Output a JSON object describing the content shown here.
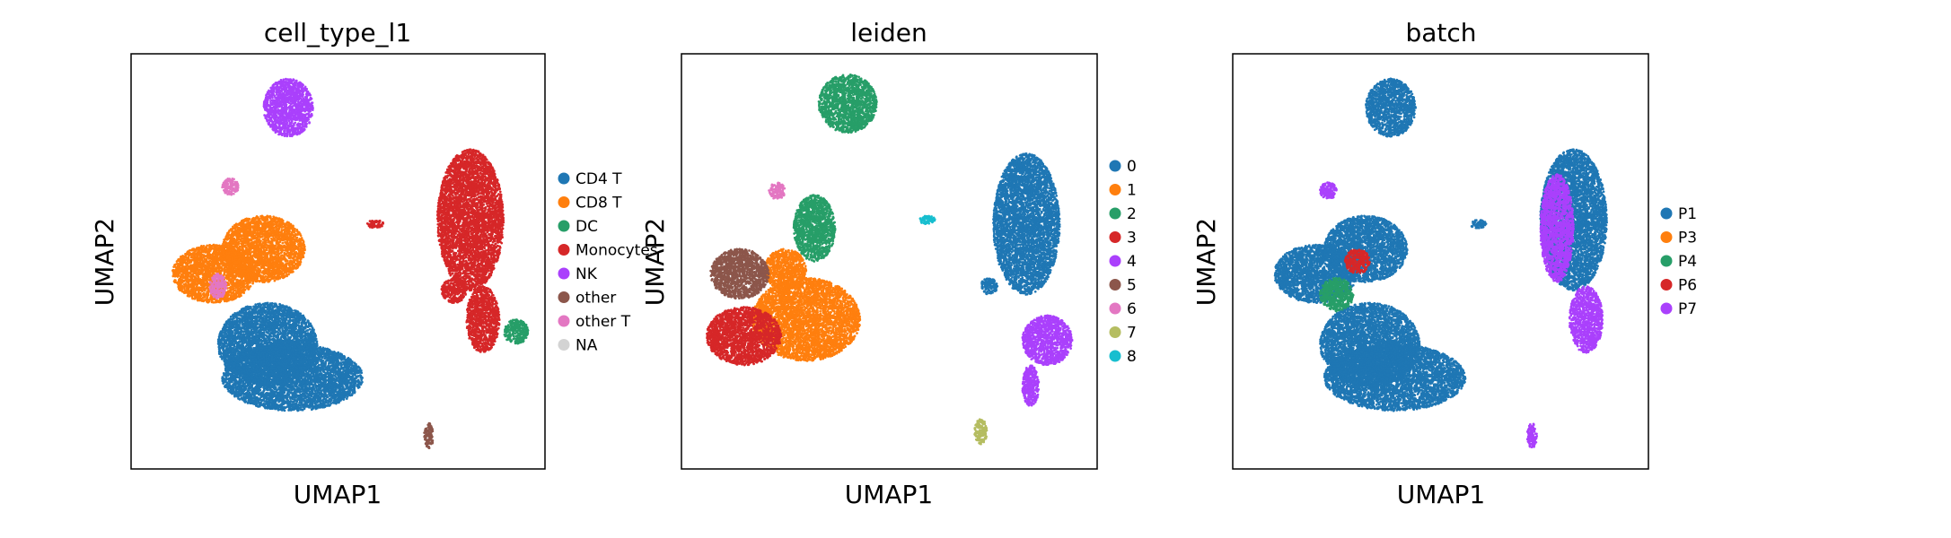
{
  "figure": {
    "background": "#ffffff"
  },
  "chart_data": [
    {
      "type": "scatter",
      "title": "cell_type_l1",
      "xlabel": "UMAP1",
      "ylabel": "UMAP2",
      "show_ylabel": true,
      "ticks": "none",
      "grid": false,
      "legend_position": "right",
      "legend": [
        {
          "name": "CD4 T",
          "color": "#1f77b4"
        },
        {
          "name": "CD8 T",
          "color": "#ff7f0e"
        },
        {
          "name": "DC",
          "color": "#279e68"
        },
        {
          "name": "Monocytes",
          "color": "#d62728"
        },
        {
          "name": "NK",
          "color": "#aa40fc"
        },
        {
          "name": "other",
          "color": "#8c564b"
        },
        {
          "name": "other T",
          "color": "#e377c2"
        },
        {
          "name": "NA",
          "color": "#d3d3d3"
        }
      ],
      "regions": [
        {
          "group": "CD4 T",
          "color": "#1f77b4",
          "cx": 0.39,
          "cy": 0.22,
          "rx": 0.17,
          "ry": 0.08
        },
        {
          "group": "CD4 T",
          "color": "#1f77b4",
          "cx": 0.33,
          "cy": 0.3,
          "rx": 0.12,
          "ry": 0.1
        },
        {
          "group": "CD8 T",
          "color": "#ff7f0e",
          "cx": 0.2,
          "cy": 0.47,
          "rx": 0.1,
          "ry": 0.07
        },
        {
          "group": "CD8 T",
          "color": "#ff7f0e",
          "cx": 0.32,
          "cy": 0.53,
          "rx": 0.1,
          "ry": 0.08
        },
        {
          "group": "NK",
          "color": "#aa40fc",
          "cx": 0.38,
          "cy": 0.87,
          "rx": 0.06,
          "ry": 0.07
        },
        {
          "group": "other T",
          "color": "#e377c2",
          "cx": 0.24,
          "cy": 0.68,
          "rx": 0.02,
          "ry": 0.02
        },
        {
          "group": "other T",
          "color": "#e377c2",
          "cx": 0.21,
          "cy": 0.44,
          "rx": 0.02,
          "ry": 0.03
        },
        {
          "group": "Monocytes",
          "color": "#d62728",
          "cx": 0.82,
          "cy": 0.6,
          "rx": 0.08,
          "ry": 0.17
        },
        {
          "group": "Monocytes",
          "color": "#d62728",
          "cx": 0.85,
          "cy": 0.36,
          "rx": 0.04,
          "ry": 0.08
        },
        {
          "group": "Monocytes",
          "color": "#d62728",
          "cx": 0.78,
          "cy": 0.43,
          "rx": 0.03,
          "ry": 0.03
        },
        {
          "group": "Monocytes",
          "color": "#d62728",
          "cx": 0.59,
          "cy": 0.59,
          "rx": 0.02,
          "ry": 0.01
        },
        {
          "group": "DC",
          "color": "#279e68",
          "cx": 0.93,
          "cy": 0.33,
          "rx": 0.03,
          "ry": 0.03
        },
        {
          "group": "other",
          "color": "#8c564b",
          "cx": 0.72,
          "cy": 0.08,
          "rx": 0.012,
          "ry": 0.03
        }
      ]
    },
    {
      "type": "scatter",
      "title": "leiden",
      "xlabel": "UMAP1",
      "ylabel": "UMAP2",
      "show_ylabel": true,
      "ticks": "none",
      "grid": false,
      "legend_position": "right",
      "legend": [
        {
          "name": "0",
          "color": "#1f77b4"
        },
        {
          "name": "1",
          "color": "#ff7f0e"
        },
        {
          "name": "2",
          "color": "#279e68"
        },
        {
          "name": "3",
          "color": "#d62728"
        },
        {
          "name": "4",
          "color": "#aa40fc"
        },
        {
          "name": "5",
          "color": "#8c564b"
        },
        {
          "name": "6",
          "color": "#e377c2"
        },
        {
          "name": "7",
          "color": "#b5bd61"
        },
        {
          "name": "8",
          "color": "#17becf"
        }
      ],
      "regions": [
        {
          "group": "0",
          "color": "#1f77b4",
          "cx": 0.83,
          "cy": 0.59,
          "rx": 0.08,
          "ry": 0.17
        },
        {
          "group": "0",
          "color": "#1f77b4",
          "cx": 0.74,
          "cy": 0.44,
          "rx": 0.02,
          "ry": 0.02
        },
        {
          "group": "4",
          "color": "#aa40fc",
          "cx": 0.88,
          "cy": 0.31,
          "rx": 0.06,
          "ry": 0.06
        },
        {
          "group": "4",
          "color": "#aa40fc",
          "cx": 0.84,
          "cy": 0.2,
          "rx": 0.02,
          "ry": 0.05
        },
        {
          "group": "2",
          "color": "#279e68",
          "cx": 0.4,
          "cy": 0.88,
          "rx": 0.07,
          "ry": 0.07
        },
        {
          "group": "2",
          "color": "#279e68",
          "cx": 0.32,
          "cy": 0.58,
          "rx": 0.05,
          "ry": 0.08
        },
        {
          "group": "1",
          "color": "#ff7f0e",
          "cx": 0.3,
          "cy": 0.36,
          "rx": 0.13,
          "ry": 0.1
        },
        {
          "group": "1",
          "color": "#ff7f0e",
          "cx": 0.25,
          "cy": 0.48,
          "rx": 0.05,
          "ry": 0.05
        },
        {
          "group": "5",
          "color": "#8c564b",
          "cx": 0.14,
          "cy": 0.47,
          "rx": 0.07,
          "ry": 0.06
        },
        {
          "group": "3",
          "color": "#d62728",
          "cx": 0.15,
          "cy": 0.32,
          "rx": 0.09,
          "ry": 0.07
        },
        {
          "group": "6",
          "color": "#e377c2",
          "cx": 0.23,
          "cy": 0.67,
          "rx": 0.02,
          "ry": 0.02
        },
        {
          "group": "7",
          "color": "#b5bd61",
          "cx": 0.72,
          "cy": 0.09,
          "rx": 0.015,
          "ry": 0.03
        },
        {
          "group": "8",
          "color": "#17becf",
          "cx": 0.59,
          "cy": 0.6,
          "rx": 0.02,
          "ry": 0.01
        }
      ]
    },
    {
      "type": "scatter",
      "title": "batch",
      "xlabel": "UMAP1",
      "ylabel": "UMAP2",
      "show_ylabel": true,
      "ticks": "none",
      "grid": false,
      "legend_position": "right",
      "legend": [
        {
          "name": "P1",
          "color": "#1f77b4"
        },
        {
          "name": "P3",
          "color": "#ff7f0e"
        },
        {
          "name": "P4",
          "color": "#279e68"
        },
        {
          "name": "P6",
          "color": "#d62728"
        },
        {
          "name": "P7",
          "color": "#aa40fc"
        }
      ],
      "regions": [
        {
          "group": "P1",
          "color": "#1f77b4",
          "cx": 0.39,
          "cy": 0.22,
          "rx": 0.17,
          "ry": 0.08
        },
        {
          "group": "P1",
          "color": "#1f77b4",
          "cx": 0.33,
          "cy": 0.3,
          "rx": 0.12,
          "ry": 0.1
        },
        {
          "group": "P1",
          "color": "#1f77b4",
          "cx": 0.2,
          "cy": 0.47,
          "rx": 0.1,
          "ry": 0.07
        },
        {
          "group": "P1",
          "color": "#1f77b4",
          "cx": 0.32,
          "cy": 0.53,
          "rx": 0.1,
          "ry": 0.08
        },
        {
          "group": "P1",
          "color": "#1f77b4",
          "cx": 0.38,
          "cy": 0.87,
          "rx": 0.06,
          "ry": 0.07
        },
        {
          "group": "P1",
          "color": "#1f77b4",
          "cx": 0.82,
          "cy": 0.6,
          "rx": 0.08,
          "ry": 0.17
        },
        {
          "group": "P7",
          "color": "#aa40fc",
          "cx": 0.78,
          "cy": 0.58,
          "rx": 0.04,
          "ry": 0.13
        },
        {
          "group": "P7",
          "color": "#aa40fc",
          "cx": 0.85,
          "cy": 0.36,
          "rx": 0.04,
          "ry": 0.08
        },
        {
          "group": "P7",
          "color": "#aa40fc",
          "cx": 0.72,
          "cy": 0.08,
          "rx": 0.012,
          "ry": 0.03
        },
        {
          "group": "P4",
          "color": "#279e68",
          "cx": 0.25,
          "cy": 0.42,
          "rx": 0.04,
          "ry": 0.04
        },
        {
          "group": "P6",
          "color": "#d62728",
          "cx": 0.3,
          "cy": 0.5,
          "rx": 0.03,
          "ry": 0.03
        },
        {
          "group": "P1",
          "color": "#1f77b4",
          "cx": 0.59,
          "cy": 0.59,
          "rx": 0.02,
          "ry": 0.01
        },
        {
          "group": "P7",
          "color": "#aa40fc",
          "cx": 0.23,
          "cy": 0.67,
          "rx": 0.02,
          "ry": 0.02
        }
      ]
    }
  ]
}
